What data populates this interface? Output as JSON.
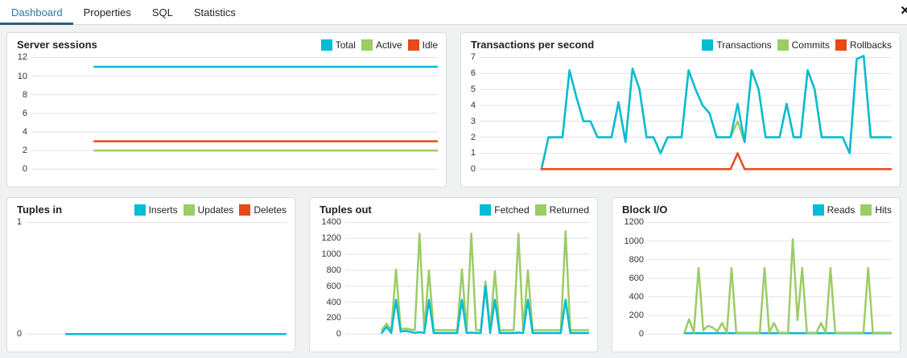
{
  "colors": {
    "cyan": "#00BCD4",
    "green": "#9CCC65",
    "orange": "#E64A19",
    "active_tab_text": "#2c76a9",
    "active_tab_underline": "#29617f",
    "gridline": "#e2e2e2"
  },
  "tabbar": {
    "tabs": [
      {
        "label": "Dashboard",
        "active": true
      },
      {
        "label": "Properties",
        "active": false
      },
      {
        "label": "SQL",
        "active": false
      },
      {
        "label": "Statistics",
        "active": false
      }
    ],
    "close_glyph": "✕"
  },
  "panels": [
    {
      "title": "Server sessions",
      "row": 1,
      "chart_index": 0,
      "legend": [
        {
          "label": "Total",
          "color": "cyan"
        },
        {
          "label": "Active",
          "color": "green"
        },
        {
          "label": "Idle",
          "color": "orange"
        }
      ]
    },
    {
      "title": "Transactions per second",
      "row": 1,
      "chart_index": 1,
      "legend": [
        {
          "label": "Transactions",
          "color": "cyan"
        },
        {
          "label": "Commits",
          "color": "green"
        },
        {
          "label": "Rollbacks",
          "color": "orange"
        }
      ]
    },
    {
      "title": "Tuples in",
      "row": 2,
      "chart_index": 2,
      "legend": [
        {
          "label": "Inserts",
          "color": "cyan"
        },
        {
          "label": "Updates",
          "color": "green"
        },
        {
          "label": "Deletes",
          "color": "orange"
        }
      ]
    },
    {
      "title": "Tuples out",
      "row": 2,
      "chart_index": 3,
      "legend": [
        {
          "label": "Fetched",
          "color": "cyan"
        },
        {
          "label": "Returned",
          "color": "green"
        }
      ]
    },
    {
      "title": "Block I/O",
      "row": 2,
      "chart_index": 4,
      "legend": [
        {
          "label": "Reads",
          "color": "cyan"
        },
        {
          "label": "Hits",
          "color": "green"
        }
      ]
    }
  ],
  "chart_data": [
    {
      "id": "server-sessions",
      "type": "line",
      "title": "Server sessions",
      "y_ticks": [
        12,
        10,
        8,
        6,
        4,
        2,
        0
      ],
      "ylim": [
        0,
        12
      ],
      "grid": true,
      "legend_position": "top-right",
      "start_fraction": 0.155,
      "series": [
        {
          "name": "Active",
          "color": "green",
          "values": [
            2,
            2
          ]
        },
        {
          "name": "Idle",
          "color": "orange",
          "values": [
            3,
            3
          ]
        },
        {
          "name": "Total",
          "color": "cyan",
          "values": [
            11,
            11
          ]
        }
      ]
    },
    {
      "id": "transactions-per-second",
      "type": "line",
      "title": "Transactions per second",
      "y_ticks": [
        7,
        6,
        5,
        4,
        3,
        2,
        1,
        0
      ],
      "ylim": [
        0,
        7
      ],
      "grid": true,
      "legend_position": "top-right",
      "start_fraction": 0.15,
      "series": [
        {
          "name": "Commits",
          "color": "green",
          "values": [
            0,
            2,
            2,
            2,
            6.2,
            4.5,
            3,
            3,
            2,
            2,
            2,
            4.2,
            1.7,
            6.3,
            5,
            2,
            2,
            1,
            2,
            2,
            2,
            6.2,
            5,
            4,
            3.5,
            2,
            2,
            2,
            3,
            1.7,
            6.2,
            5,
            2,
            2,
            2,
            4.1,
            2,
            2,
            6.2,
            5,
            2,
            2,
            2,
            2,
            1,
            6.9,
            7.1,
            2,
            2,
            2,
            2
          ]
        },
        {
          "name": "Transactions",
          "color": "cyan",
          "values": [
            0,
            2,
            2,
            2,
            6.2,
            4.5,
            3,
            3,
            2,
            2,
            2,
            4.2,
            1.7,
            6.3,
            5,
            2,
            2,
            1,
            2,
            2,
            2,
            6.2,
            5,
            4,
            3.5,
            2,
            2,
            2,
            4.1,
            1.7,
            6.2,
            5,
            2,
            2,
            2,
            4.1,
            2,
            2,
            6.2,
            5,
            2,
            2,
            2,
            2,
            1,
            6.9,
            7.1,
            2,
            2,
            2,
            2
          ]
        },
        {
          "name": "Rollbacks",
          "color": "orange",
          "values": [
            0,
            0,
            0,
            0,
            0,
            0,
            0,
            0,
            0,
            0,
            0,
            0,
            0,
            0,
            0,
            0,
            0,
            0,
            0,
            0,
            0,
            0,
            0,
            0,
            0,
            0,
            0,
            0,
            1,
            0,
            0,
            0,
            0,
            0,
            0,
            0,
            0,
            0,
            0,
            0,
            0,
            0,
            0,
            0,
            0,
            0,
            0,
            0,
            0,
            0,
            0
          ]
        }
      ]
    },
    {
      "id": "tuples-in",
      "type": "line",
      "title": "Tuples in",
      "y_ticks": [
        1,
        0
      ],
      "ylim": [
        0,
        1
      ],
      "grid": true,
      "legend_position": "top-right",
      "start_fraction": 0.155,
      "series": [
        {
          "name": "Updates",
          "color": "green",
          "values": [
            0,
            0
          ]
        },
        {
          "name": "Deletes",
          "color": "orange",
          "values": [
            0,
            0
          ]
        },
        {
          "name": "Inserts",
          "color": "cyan",
          "values": [
            0,
            0
          ]
        }
      ]
    },
    {
      "id": "tuples-out",
      "type": "line",
      "title": "Tuples out",
      "y_ticks": [
        1400,
        1200,
        1000,
        800,
        600,
        400,
        200,
        0
      ],
      "ylim": [
        0,
        1400
      ],
      "grid": true,
      "legend_position": "top-right",
      "start_fraction": 0.15,
      "series": [
        {
          "name": "Returned",
          "color": "green",
          "values": [
            50,
            130,
            50,
            810,
            60,
            70,
            60,
            50,
            1260,
            50,
            800,
            50,
            50,
            50,
            50,
            50,
            50,
            810,
            50,
            1260,
            50,
            50,
            660,
            50,
            790,
            50,
            50,
            50,
            50,
            1260,
            50,
            800,
            50,
            50,
            50,
            50,
            50,
            50,
            50,
            1290,
            50,
            50,
            50,
            50,
            50
          ]
        },
        {
          "name": "Fetched",
          "color": "cyan",
          "values": [
            15,
            90,
            15,
            430,
            30,
            40,
            30,
            15,
            25,
            15,
            430,
            15,
            15,
            15,
            15,
            15,
            15,
            430,
            15,
            20,
            15,
            15,
            600,
            15,
            430,
            15,
            15,
            15,
            15,
            20,
            15,
            430,
            15,
            15,
            15,
            15,
            15,
            15,
            15,
            430,
            15,
            15,
            15,
            15,
            15
          ]
        }
      ]
    },
    {
      "id": "block-io",
      "type": "line",
      "title": "Block I/O",
      "y_ticks": [
        1200,
        1000,
        800,
        600,
        400,
        200,
        0
      ],
      "ylim": [
        0,
        1200
      ],
      "grid": true,
      "legend_position": "top-right",
      "start_fraction": 0.15,
      "series": [
        {
          "name": "Reads",
          "color": "cyan",
          "values": [
            10,
            10,
            10,
            10,
            10,
            10,
            10,
            10,
            10,
            10,
            10,
            10,
            10,
            10,
            10,
            10,
            10,
            10,
            10,
            10,
            10,
            10,
            10,
            10,
            10,
            10,
            10,
            10,
            10,
            10,
            10,
            10,
            10,
            10,
            10,
            10,
            10,
            10,
            10,
            10,
            10,
            10,
            10,
            10,
            10
          ]
        },
        {
          "name": "Hits",
          "color": "green",
          "values": [
            15,
            160,
            15,
            710,
            40,
            90,
            70,
            30,
            120,
            15,
            710,
            15,
            15,
            15,
            15,
            15,
            15,
            710,
            15,
            120,
            15,
            15,
            15,
            1020,
            150,
            710,
            15,
            15,
            15,
            120,
            15,
            710,
            15,
            15,
            15,
            15,
            15,
            15,
            15,
            710,
            15,
            15,
            15,
            15,
            15
          ]
        }
      ]
    }
  ]
}
